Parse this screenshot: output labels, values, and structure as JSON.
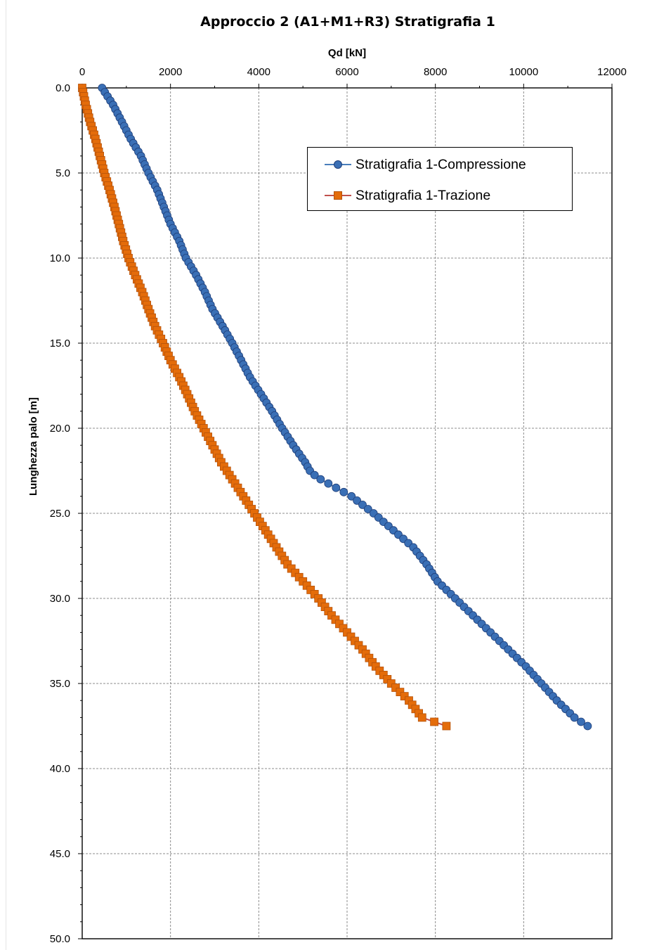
{
  "chart_data": {
    "type": "line",
    "title": "Approccio 2 (A1+M1+R3)  Stratigrafia 1",
    "xlabel": "Qd [kN]",
    "ylabel": "Lunghezza palo [m]",
    "xlim": [
      0,
      12000
    ],
    "ylim": [
      0,
      50
    ],
    "y_inverted": true,
    "x_axis_position": "top",
    "x_ticks": [
      "0",
      "2000",
      "4000",
      "6000",
      "8000",
      "10000",
      "12000"
    ],
    "y_ticks": [
      "0.0",
      "5.0",
      "10.0",
      "15.0",
      "20.0",
      "25.0",
      "30.0",
      "35.0",
      "40.0",
      "45.0",
      "50.0"
    ],
    "grid": true,
    "legend_position": "top-right",
    "series": [
      {
        "name": "Stratigrafia 1-Compressione",
        "color": "#3a6fb5",
        "line_color": "#4a7ebb",
        "marker": "circle",
        "knots": [
          [
            0.0,
            450
          ],
          [
            1.0,
            700
          ],
          [
            2.0,
            900
          ],
          [
            3.0,
            1100
          ],
          [
            4.0,
            1330
          ],
          [
            5.0,
            1500
          ],
          [
            6.0,
            1700
          ],
          [
            7.0,
            1850
          ],
          [
            8.0,
            2000
          ],
          [
            9.0,
            2200
          ],
          [
            10.0,
            2350
          ],
          [
            11.0,
            2580
          ],
          [
            12.0,
            2780
          ],
          [
            13.0,
            2950
          ],
          [
            14.0,
            3180
          ],
          [
            15.0,
            3400
          ],
          [
            16.0,
            3600
          ],
          [
            17.0,
            3800
          ],
          [
            18.0,
            4050
          ],
          [
            19.0,
            4300
          ],
          [
            20.0,
            4530
          ],
          [
            21.0,
            4780
          ],
          [
            22.0,
            5050
          ],
          [
            22.6,
            5180
          ],
          [
            23.0,
            5400
          ],
          [
            24.0,
            6100
          ],
          [
            25.0,
            6600
          ],
          [
            26.0,
            7050
          ],
          [
            27.0,
            7500
          ],
          [
            28.0,
            7800
          ],
          [
            29.0,
            8050
          ],
          [
            30.0,
            8450
          ],
          [
            31.0,
            8850
          ],
          [
            32.0,
            9250
          ],
          [
            33.0,
            9650
          ],
          [
            34.0,
            10050
          ],
          [
            35.0,
            10400
          ],
          [
            36.0,
            10750
          ],
          [
            37.0,
            11150
          ],
          [
            37.5,
            11450
          ]
        ]
      },
      {
        "name": "Stratigrafia 1-Trazione",
        "color": "#e46c0a",
        "line_color": "#c0504d",
        "marker": "square",
        "knots": [
          [
            0.0,
            0
          ],
          [
            1.0,
            80
          ],
          [
            2.0,
            180
          ],
          [
            3.0,
            300
          ],
          [
            4.0,
            400
          ],
          [
            5.0,
            500
          ],
          [
            6.0,
            620
          ],
          [
            7.0,
            730
          ],
          [
            8.0,
            830
          ],
          [
            9.0,
            930
          ],
          [
            10.0,
            1050
          ],
          [
            11.0,
            1200
          ],
          [
            12.0,
            1360
          ],
          [
            13.0,
            1500
          ],
          [
            14.0,
            1650
          ],
          [
            15.0,
            1830
          ],
          [
            16.0,
            2000
          ],
          [
            17.0,
            2200
          ],
          [
            18.0,
            2380
          ],
          [
            19.0,
            2550
          ],
          [
            20.0,
            2750
          ],
          [
            21.0,
            2950
          ],
          [
            22.0,
            3150
          ],
          [
            23.0,
            3400
          ],
          [
            24.0,
            3650
          ],
          [
            25.0,
            3900
          ],
          [
            26.0,
            4150
          ],
          [
            27.0,
            4400
          ],
          [
            28.0,
            4650
          ],
          [
            29.0,
            5000
          ],
          [
            30.0,
            5350
          ],
          [
            31.0,
            5650
          ],
          [
            32.0,
            6000
          ],
          [
            33.0,
            6350
          ],
          [
            34.0,
            6650
          ],
          [
            35.0,
            7000
          ],
          [
            36.0,
            7400
          ],
          [
            37.0,
            7700
          ],
          [
            37.5,
            8250
          ]
        ]
      }
    ]
  }
}
